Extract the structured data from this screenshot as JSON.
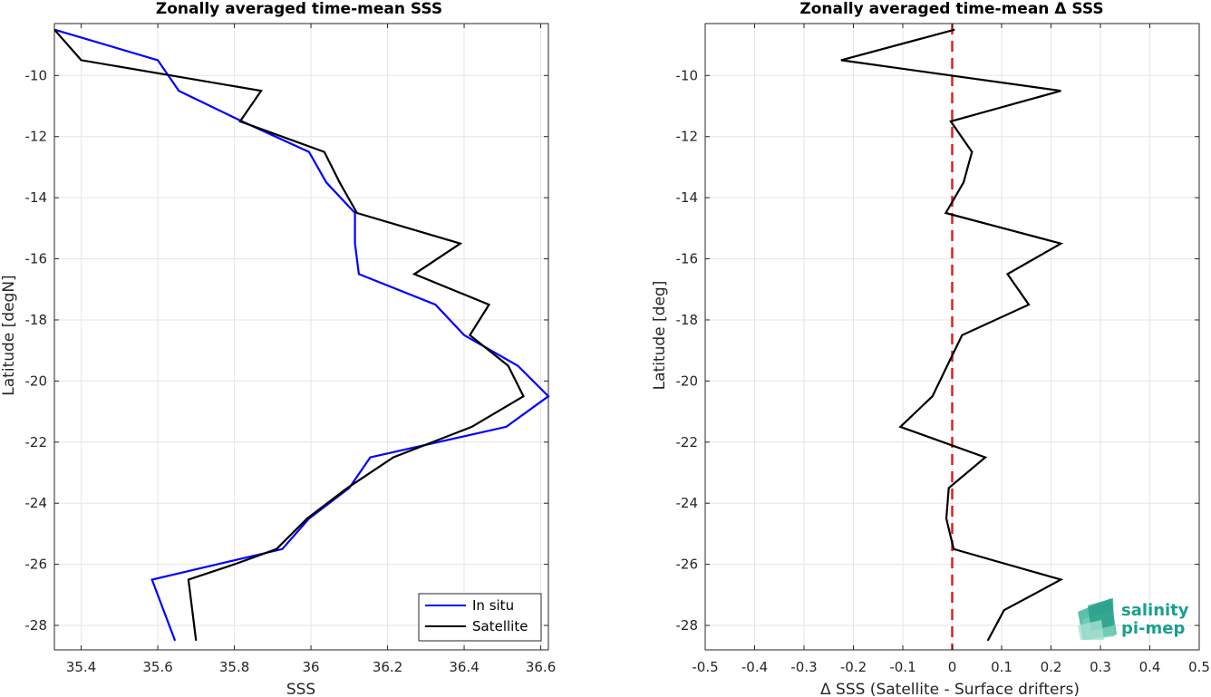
{
  "chart_data": [
    {
      "type": "line",
      "title": "Zonally averaged time-mean SSS",
      "xlabel": "SSS",
      "ylabel": "Latitude [degN]",
      "xlim": [
        35.33,
        36.62
      ],
      "ylim": [
        -28.8,
        -8.3
      ],
      "xticks": [
        35.4,
        35.6,
        35.8,
        36,
        36.2,
        36.4,
        36.6
      ],
      "xtick_labels": [
        "35.4",
        "35.6",
        "35.8",
        "36",
        "36.2",
        "36.4",
        "36.6"
      ],
      "yticks": [
        -10,
        -12,
        -14,
        -16,
        -18,
        -20,
        -22,
        -24,
        -26,
        -28
      ],
      "ytick_labels": [
        "-10",
        "-12",
        "-14",
        "-16",
        "-18",
        "-20",
        "-22",
        "-24",
        "-26",
        "-28"
      ],
      "grid": true,
      "legend": "bottom-right",
      "series": [
        {
          "name": "In situ",
          "color": "#0000ff",
          "x": [
            35.33,
            35.6,
            35.655,
            35.82,
            35.995,
            36.04,
            36.115,
            36.115,
            36.125,
            36.325,
            36.4,
            36.54,
            36.62,
            36.51,
            36.155,
            36.1,
            35.995,
            35.925,
            35.585,
            35.645
          ],
          "y": [
            -8.5,
            -9.5,
            -10.5,
            -11.5,
            -12.5,
            -13.5,
            -14.5,
            -15.5,
            -16.5,
            -17.5,
            -18.5,
            -19.5,
            -20.5,
            -21.5,
            -22.5,
            -23.5,
            -24.5,
            -25.5,
            -26.5,
            -28.5
          ]
        },
        {
          "name": "Satellite",
          "color": "#000000",
          "x": [
            35.33,
            35.4,
            35.87,
            35.815,
            36.035,
            36.075,
            36.12,
            36.39,
            36.27,
            36.465,
            36.415,
            36.515,
            36.555,
            36.42,
            36.215,
            36.095,
            35.99,
            35.91,
            35.8,
            35.68,
            35.7
          ],
          "y": [
            -8.5,
            -9.5,
            -10.5,
            -11.5,
            -12.5,
            -13.5,
            -14.5,
            -15.5,
            -16.5,
            -17.5,
            -18.5,
            -19.5,
            -20.5,
            -21.5,
            -22.5,
            -23.5,
            -24.5,
            -25.5,
            -26.0,
            -26.5,
            -28.5
          ]
        }
      ]
    },
    {
      "type": "line",
      "title": "Zonally averaged time-mean Δ SSS",
      "xlabel": "Δ SSS (Satellite - Surface drifters)",
      "ylabel": "Latitude [deg]",
      "xlim": [
        -0.5,
        0.5
      ],
      "ylim": [
        -28.8,
        -8.3
      ],
      "xticks": [
        -0.5,
        -0.4,
        -0.3,
        -0.2,
        -0.1,
        0,
        0.1,
        0.2,
        0.3,
        0.4,
        0.5
      ],
      "xtick_labels": [
        "-0.5",
        "-0.4",
        "-0.3",
        "-0.2",
        "-0.1",
        "0",
        "0.1",
        "0.2",
        "0.3",
        "0.4",
        "0.5"
      ],
      "yticks": [
        -10,
        -12,
        -14,
        -16,
        -18,
        -20,
        -22,
        -24,
        -26,
        -28
      ],
      "ytick_labels": [
        "-10",
        "-12",
        "-14",
        "-16",
        "-18",
        "-20",
        "-22",
        "-24",
        "-26",
        "-28"
      ],
      "grid": true,
      "series": [
        {
          "color": "#000000",
          "x": [
            0.005,
            -0.225,
            0.22,
            -0.003,
            0.04,
            0.023,
            -0.013,
            0.22,
            0.112,
            0.155,
            0.02,
            -0.01,
            -0.04,
            -0.105,
            0.067,
            -0.007,
            -0.012,
            0.003,
            0.22,
            0.105,
            0.072
          ],
          "y": [
            -8.5,
            -9.5,
            -10.5,
            -11.5,
            -12.5,
            -13.5,
            -14.5,
            -15.5,
            -16.5,
            -17.5,
            -18.5,
            -19.5,
            -20.5,
            -21.5,
            -22.5,
            -23.5,
            -24.5,
            -25.5,
            -26.5,
            -27.5,
            -28.5
          ]
        }
      ],
      "reference_line": {
        "x": 0,
        "color": "#e02020",
        "style": "dashed"
      }
    }
  ],
  "logo": {
    "line1": "salinity",
    "line2": "pi-mep"
  }
}
